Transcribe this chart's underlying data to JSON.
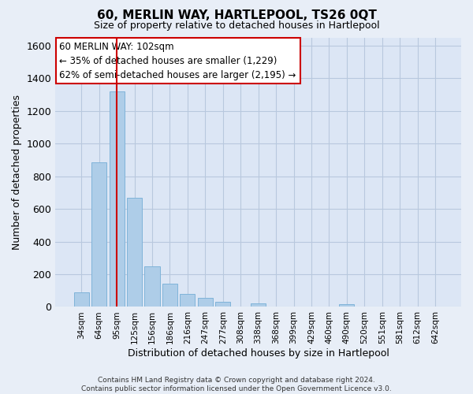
{
  "title": "60, MERLIN WAY, HARTLEPOOL, TS26 0QT",
  "subtitle": "Size of property relative to detached houses in Hartlepool",
  "xlabel": "Distribution of detached houses by size in Hartlepool",
  "ylabel": "Number of detached properties",
  "bar_labels": [
    "34sqm",
    "64sqm",
    "95sqm",
    "125sqm",
    "156sqm",
    "186sqm",
    "216sqm",
    "247sqm",
    "277sqm",
    "308sqm",
    "338sqm",
    "368sqm",
    "399sqm",
    "429sqm",
    "460sqm",
    "490sqm",
    "520sqm",
    "551sqm",
    "581sqm",
    "612sqm",
    "642sqm"
  ],
  "bar_values": [
    88,
    885,
    1320,
    670,
    250,
    140,
    80,
    55,
    30,
    0,
    20,
    0,
    0,
    0,
    0,
    15,
    0,
    0,
    0,
    0,
    0
  ],
  "bar_color": "#aecde8",
  "bar_edge_color": "#7fb3d9",
  "vline_x_index": 2,
  "vline_color": "#cc0000",
  "ylim": [
    0,
    1650
  ],
  "yticks": [
    0,
    200,
    400,
    600,
    800,
    1000,
    1200,
    1400,
    1600
  ],
  "annotation_title": "60 MERLIN WAY: 102sqm",
  "annotation_line1": "← 35% of detached houses are smaller (1,229)",
  "annotation_line2": "62% of semi-detached houses are larger (2,195) →",
  "annotation_box_color": "#ffffff",
  "annotation_box_edge": "#cc0000",
  "footer_line1": "Contains HM Land Registry data © Crown copyright and database right 2024.",
  "footer_line2": "Contains public sector information licensed under the Open Government Licence v3.0.",
  "bg_color": "#e8eef7",
  "plot_bg_color": "#dce6f5",
  "grid_color": "#b8c8de",
  "title_fontsize": 11,
  "subtitle_fontsize": 9,
  "ylabel_fontsize": 9,
  "xlabel_fontsize": 9
}
